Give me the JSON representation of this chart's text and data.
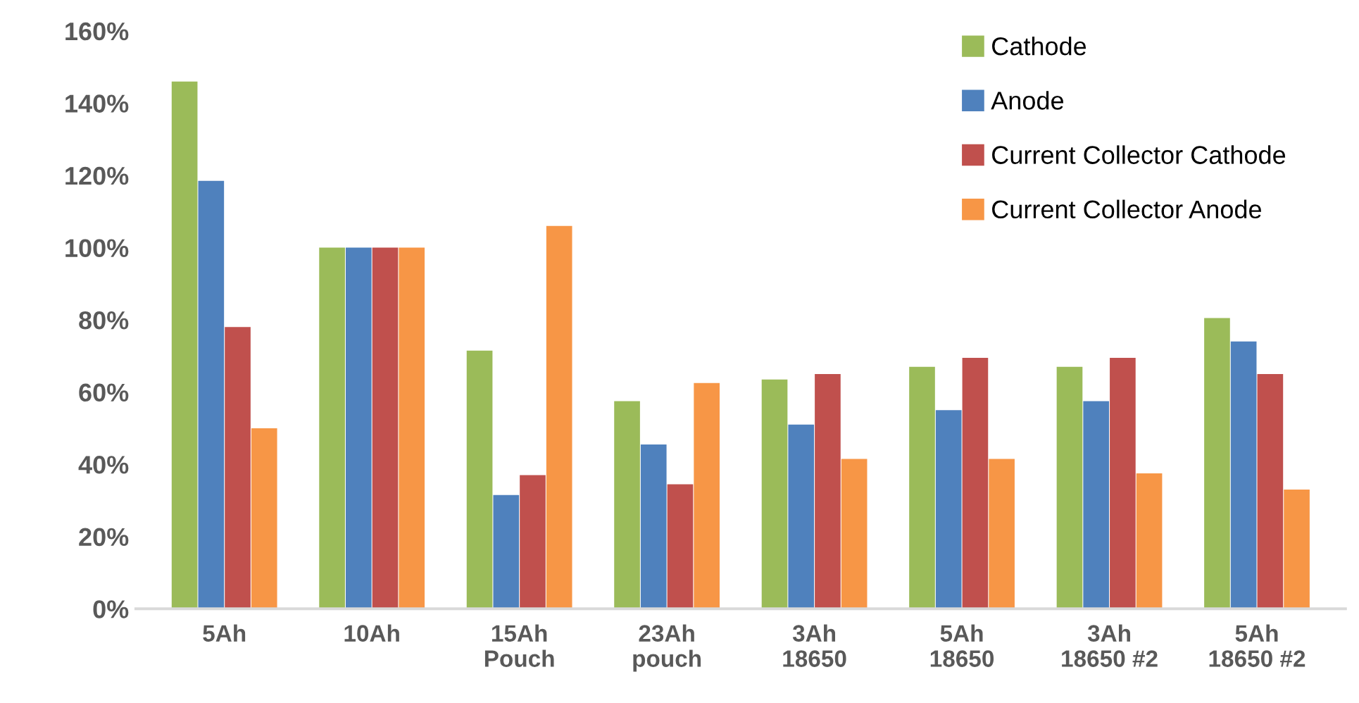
{
  "chart_data": {
    "type": "bar",
    "categories": [
      "5Ah",
      "10Ah",
      "15Ah\nPouch",
      "23Ah\npouch",
      "3Ah\n18650",
      "5Ah\n18650",
      "3Ah\n18650 #2",
      "5Ah\n18650 #2"
    ],
    "series": [
      {
        "name": "Cathode",
        "color": "#9bbb59",
        "values": [
          146,
          100,
          71.5,
          57.5,
          63.5,
          67,
          67,
          80.5
        ]
      },
      {
        "name": "Anode",
        "color": "#4f81bd",
        "values": [
          118.5,
          100,
          31.5,
          45.5,
          51,
          55,
          57.5,
          74
        ]
      },
      {
        "name": "Current Collector Cathode",
        "color": "#c0504d",
        "values": [
          78,
          100,
          37,
          34.5,
          65,
          69.5,
          69.5,
          65
        ]
      },
      {
        "name": "Current Collector Anode",
        "color": "#f79646",
        "values": [
          50,
          100,
          106,
          62.5,
          41.5,
          41.5,
          37.5,
          33
        ]
      }
    ],
    "ylim": [
      0,
      160
    ],
    "yticks": [
      {
        "value": 0,
        "label": "0%"
      },
      {
        "value": 20,
        "label": "20%"
      },
      {
        "value": 40,
        "label": "40%"
      },
      {
        "value": 60,
        "label": "60%"
      },
      {
        "value": 80,
        "label": "80%"
      },
      {
        "value": 100,
        "label": "100%"
      },
      {
        "value": 120,
        "label": "120%"
      },
      {
        "value": 140,
        "label": "140%"
      },
      {
        "value": 160,
        "label": "160%"
      }
    ],
    "grid": false,
    "legend": "top right"
  }
}
